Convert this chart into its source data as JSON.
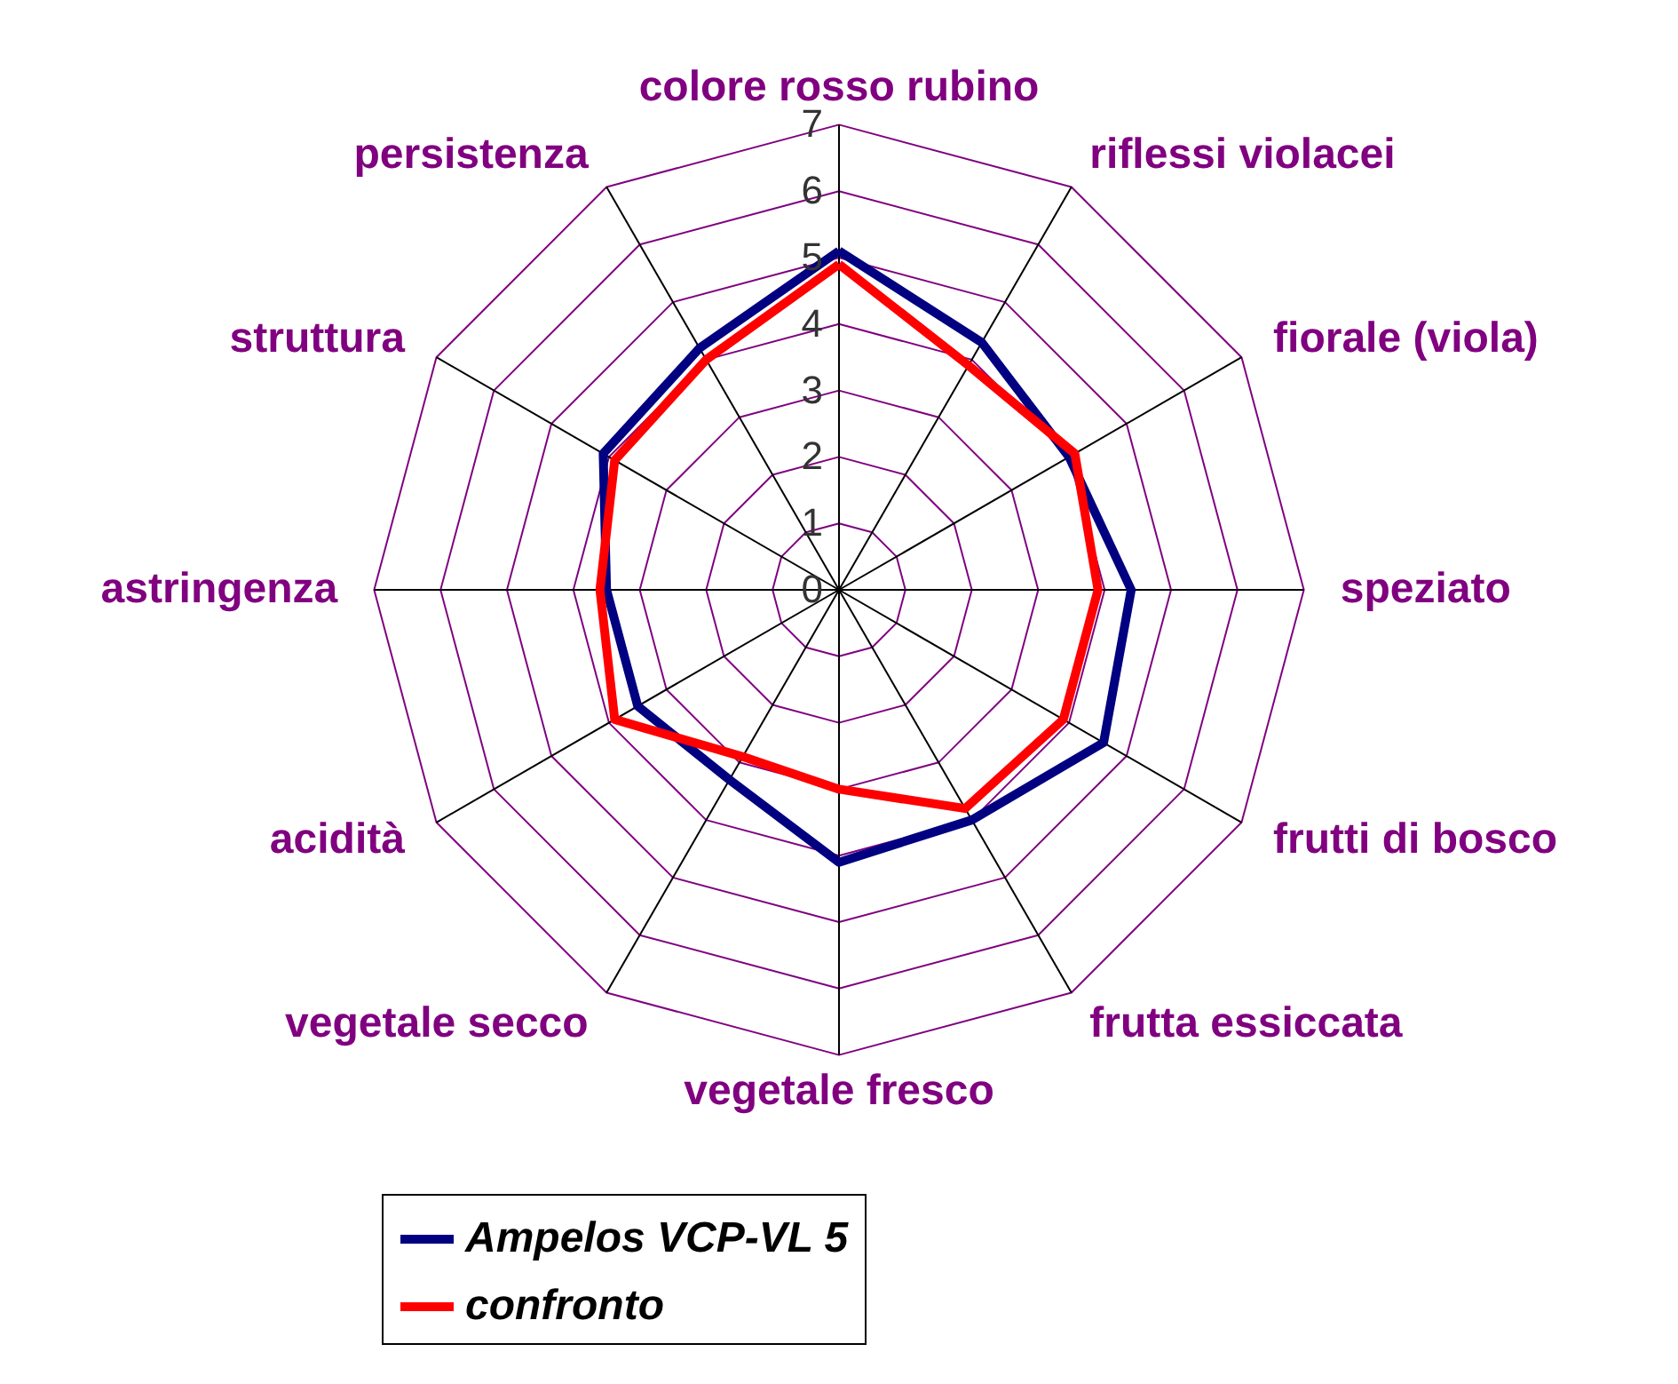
{
  "chart_data": {
    "type": "radar",
    "categories": [
      "colore rosso rubino",
      "riflessi violacei",
      "fiorale (viola)",
      "speziato",
      "frutti di bosco",
      "frutta essiccata",
      "vegetale fresco",
      "vegetale secco",
      "acidità",
      "astringenza",
      "struttura",
      "persistenza"
    ],
    "series": [
      {
        "name": "Ampelos VCP-VL 5",
        "color": "#000080",
        "values": [
          5.1,
          4.3,
          4.0,
          4.4,
          4.6,
          4.0,
          4.1,
          3.3,
          3.5,
          3.5,
          4.1,
          4.2
        ]
      },
      {
        "name": "confronto",
        "color": "#ff0000",
        "values": [
          4.9,
          3.9,
          4.1,
          3.9,
          3.9,
          3.8,
          3.0,
          2.9,
          3.9,
          3.6,
          3.9,
          4.0
        ]
      }
    ],
    "ylim": [
      0,
      7
    ],
    "yticks": [
      0,
      1,
      2,
      3,
      4,
      5,
      6,
      7
    ],
    "grid": true,
    "legend": "bottom"
  }
}
